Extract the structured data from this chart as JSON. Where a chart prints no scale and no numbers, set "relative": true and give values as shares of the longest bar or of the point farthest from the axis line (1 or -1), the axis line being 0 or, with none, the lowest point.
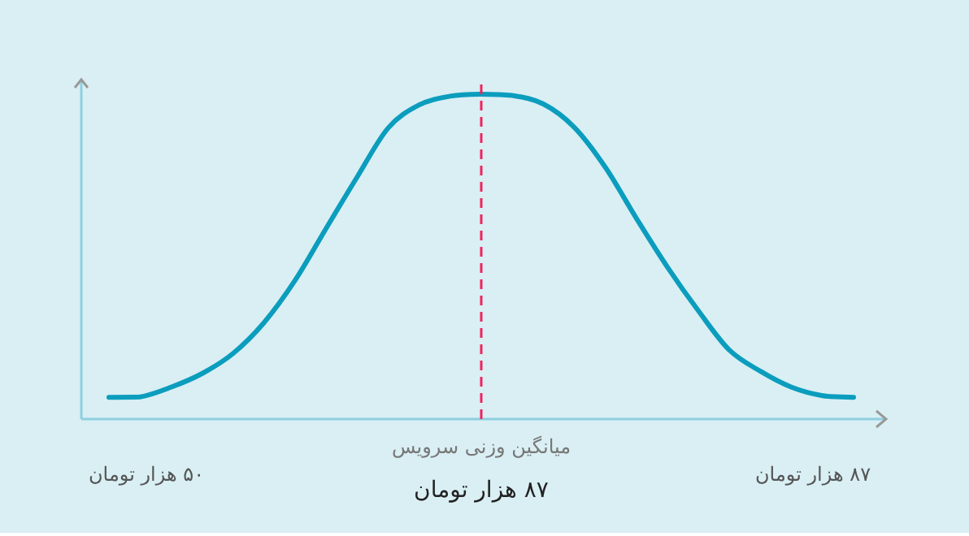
{
  "chart_data": {
    "type": "line",
    "relative": true,
    "categories": [
      null,
      null,
      null,
      null,
      null,
      null,
      null,
      null,
      null,
      null,
      null,
      null,
      null,
      null,
      null,
      null,
      null,
      null,
      null,
      null,
      null,
      null,
      null,
      null,
      null
    ],
    "series": [
      {
        "color": "#0b9dbd",
        "values": [
          0.067,
          0.068,
          0.098,
          0.14,
          0.202,
          0.297,
          0.427,
          0.587,
          0.745,
          0.896,
          0.967,
          0.994,
          1.0,
          0.996,
          0.97,
          0.898,
          0.775,
          0.618,
          0.468,
          0.333,
          0.212,
          0.147,
          0.098,
          0.072,
          0.067
        ]
      }
    ],
    "annotations": [
      "میانگین وزنی سرویس",
      "۸۷ هزار تومان",
      "۵۰ هزار تومان",
      "۸۷ هزار تومان"
    ]
  }
}
